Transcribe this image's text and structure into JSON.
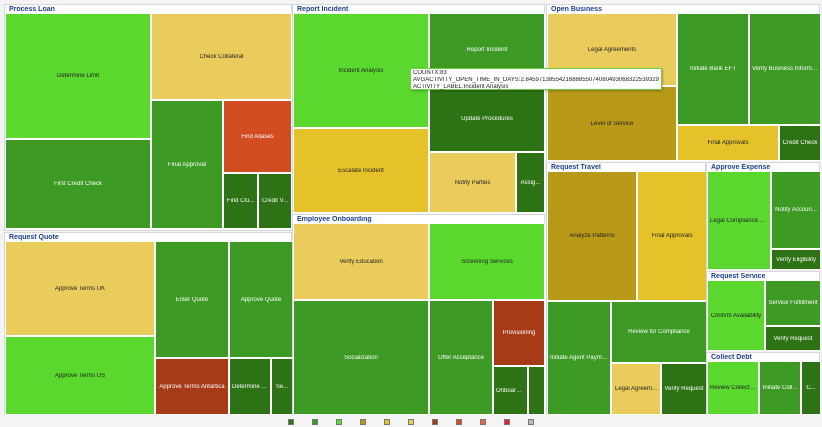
{
  "chart_data": {
    "type": "treemap",
    "groups": [
      {
        "title": "Process Loan",
        "tiles": [
          {
            "label": "Determine Limit",
            "color": "#5ad82e"
          },
          {
            "label": "Check Collateral",
            "color": "#e9cc5b"
          },
          {
            "label": "First Credit Check",
            "color": "#3d9a24"
          },
          {
            "label": "Final Approval",
            "color": "#3d9a24"
          },
          {
            "label": "Find Aliases",
            "color": "#d24e22"
          },
          {
            "label": "Find Clu...",
            "color": "#2d7315"
          },
          {
            "label": "Credit V...",
            "color": "#2d7315"
          }
        ]
      },
      {
        "title": "Request Quote",
        "tiles": [
          {
            "label": "Approve Terms UK",
            "color": "#e9cc5b"
          },
          {
            "label": "Approve Terms US",
            "color": "#5ad82e"
          },
          {
            "label": "Enter Quote",
            "color": "#3d9a24"
          },
          {
            "label": "Approve Quote",
            "color": "#3d9a24"
          },
          {
            "label": "Approve Terms Antartica",
            "color": "#a73b18"
          },
          {
            "label": "Determine A...",
            "color": "#2d7315"
          },
          {
            "label": "Se...",
            "color": "#2d7315"
          }
        ]
      },
      {
        "title": "Report Incident",
        "tiles": [
          {
            "label": "Incident Analysis",
            "color": "#5ad82e"
          },
          {
            "label": "Report Incident",
            "color": "#3d9a24"
          },
          {
            "label": "Escalate Incident",
            "color": "#e5c229"
          },
          {
            "label": "Update Procedures",
            "color": "#2d7315"
          },
          {
            "label": "Notify Parties",
            "color": "#e9cc5b"
          },
          {
            "label": "Assig...",
            "color": "#2d7315"
          }
        ]
      },
      {
        "title": "Employee Onboarding",
        "tiles": [
          {
            "label": "Verify Education",
            "color": "#e9cc5b"
          },
          {
            "label": "Screening Services",
            "color": "#5ad82e"
          },
          {
            "label": "Socialization",
            "color": "#3d9a24"
          },
          {
            "label": "Offer Acceptance",
            "color": "#3d9a24"
          },
          {
            "label": "Provisioning",
            "color": "#a73b18"
          },
          {
            "label": "Onboarding",
            "color": "#2d7315"
          },
          {
            "label": "",
            "color": "#2d7315"
          }
        ]
      },
      {
        "title": "Open Business",
        "tiles": [
          {
            "label": "Legal Agreements",
            "color": "#e9cc5b"
          },
          {
            "label": "Level of Service",
            "color": "#b89a18"
          },
          {
            "label": "Initiate Bank EFT",
            "color": "#3d9a24"
          },
          {
            "label": "Verify Business Informa...",
            "color": "#3d9a24"
          },
          {
            "label": "Final Approvals",
            "color": "#e5c229"
          },
          {
            "label": "Credit Check",
            "color": "#2d7315"
          }
        ]
      },
      {
        "title": "Request Travel",
        "tiles": [
          {
            "label": "Analyze Patterns",
            "color": "#b89a18"
          },
          {
            "label": "Final Approvals",
            "color": "#e5c229"
          },
          {
            "label": "Initiate Agent Payment",
            "color": "#3d9a24"
          },
          {
            "label": "Review for Compliance",
            "color": "#3d9a24"
          },
          {
            "label": "Legal Agreem...",
            "color": "#e9cc5b"
          },
          {
            "label": "Verify Request",
            "color": "#2d7315"
          }
        ]
      },
      {
        "title": "Approve Expense",
        "tiles": [
          {
            "label": "Legal Compliance Check",
            "color": "#5ad82e"
          },
          {
            "label": "Notify Accoun...",
            "color": "#3d9a24"
          },
          {
            "label": "Verify Eligibility",
            "color": "#2d7315"
          }
        ]
      },
      {
        "title": "Request Service",
        "tiles": [
          {
            "label": "Confirm Availability",
            "color": "#5ad82e"
          },
          {
            "label": "Service Fulfillment",
            "color": "#3d9a24"
          },
          {
            "label": "Verify Request",
            "color": "#2d7315"
          }
        ]
      },
      {
        "title": "Collect Debt",
        "tiles": [
          {
            "label": "Review Collectibles",
            "color": "#5ad82e"
          },
          {
            "label": "Initiate Coll...",
            "color": "#3d9a24"
          },
          {
            "label": "C...",
            "color": "#2d7315"
          }
        ]
      }
    ],
    "tooltip": [
      "COUNTX:83",
      "AVGACTIVITY_OPEN_TIME_IN_DAYS:2.84597138554216888550740804930683225393295288085375",
      "ACTIVITY_LABEL:Incident Analysis"
    ],
    "legend_colors": [
      "#2d7315",
      "#3d9a24",
      "#5ad82e",
      "#b89a18",
      "#e5c229",
      "#e9cc5b",
      "#a73b18",
      "#d24e22",
      "#e8664a",
      "#e0202a",
      "#bcbcbc"
    ]
  }
}
